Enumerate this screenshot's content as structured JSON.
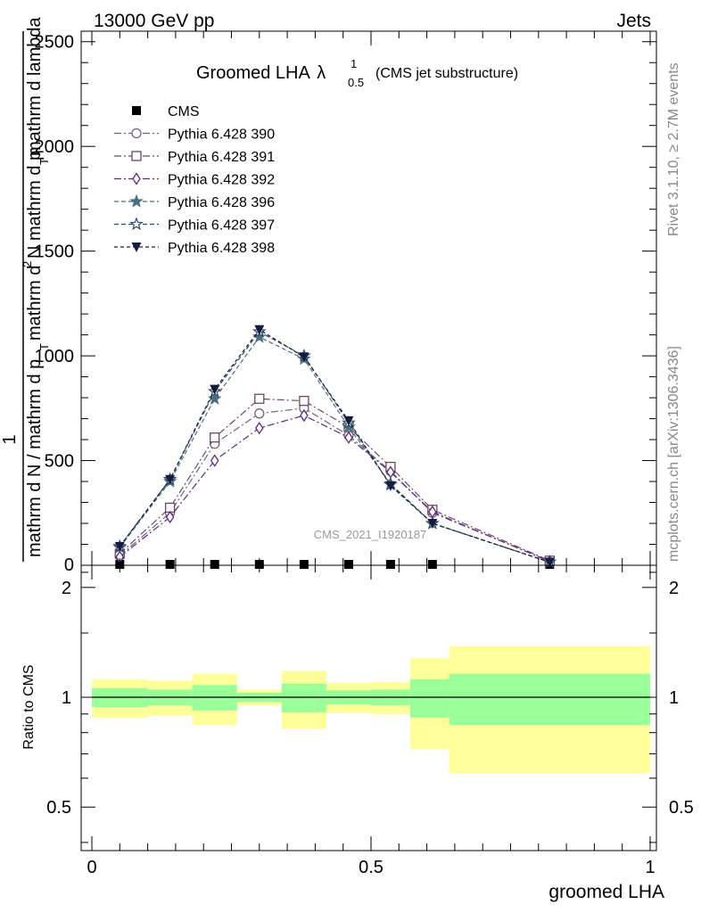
{
  "header": {
    "beam_label": "13000 GeV pp",
    "process_label": "Jets"
  },
  "side_labels": {
    "rivet": "Rivet 3.1.10, ≥ 2.7M events",
    "mcplots": "mcplots.cern.ch [arXiv:1306.3436]"
  },
  "chart_data": [
    {
      "type": "line",
      "title": "Groomed LHA",
      "title_symbol": "λ",
      "title_sup": "1",
      "title_sub": "0.5",
      "subtitle": "(CMS jet substructure)",
      "watermark": "CMS_2021_I1920187",
      "ylabel": "1 / (mathrm d N / mathrm d p_T) · mathrm d²N / (mathrm d p_T mathrm d lambda)",
      "ylabel_lines": [
        "1",
        "mathrm d N / mathrm d p",
        "T",
        "mathrm d",
        "2",
        "N",
        "mathrm d p",
        "T",
        "mathrm d lambda"
      ],
      "xlim": [
        0,
        1
      ],
      "ylim": [
        0,
        2550
      ],
      "yticks": [
        500,
        1000,
        1500,
        2000,
        2500
      ],
      "yticklabels": [
        "500",
        "1000",
        "1500",
        "2000",
        "2500"
      ],
      "x": [
        0.05,
        0.14,
        0.22,
        0.3,
        0.38,
        0.46,
        0.535,
        0.61,
        0.82
      ],
      "series": [
        {
          "name": "CMS",
          "marker": "filled-square",
          "color": "#000000",
          "values": [
            0,
            0,
            0,
            0,
            0,
            0,
            0,
            0,
            0
          ]
        },
        {
          "name": "Pythia 6.428 390",
          "marker": "open-circle",
          "color": "#77607f",
          "dash": "8,3,2,3",
          "values": [
            45,
            250,
            580,
            725,
            750,
            620,
            450,
            250,
            20
          ]
        },
        {
          "name": "Pythia 6.428 391",
          "marker": "open-square",
          "color": "#6e4860",
          "dash": "8,3,2,3",
          "values": [
            55,
            275,
            610,
            795,
            785,
            660,
            470,
            265,
            22
          ]
        },
        {
          "name": "Pythia 6.428 392",
          "marker": "open-diamond",
          "color": "#5a2a82",
          "dash": "8,3,2,3",
          "values": [
            40,
            230,
            500,
            655,
            715,
            610,
            445,
            255,
            18
          ]
        },
        {
          "name": "Pythia 6.428 396",
          "marker": "star",
          "color": "#4a6f80",
          "dash": "5,3",
          "values": [
            85,
            400,
            795,
            1090,
            985,
            660,
            390,
            200,
            15
          ]
        },
        {
          "name": "Pythia 6.428 397",
          "marker": "open-star",
          "color": "#2e4a6b",
          "dash": "5,3",
          "values": [
            90,
            410,
            830,
            1115,
            1000,
            680,
            385,
            200,
            15
          ]
        },
        {
          "name": "Pythia 6.428 398",
          "marker": "filled-triangle-down",
          "color": "#151c40",
          "dash": "4,3",
          "values": [
            90,
            410,
            840,
            1125,
            995,
            690,
            380,
            200,
            15
          ]
        }
      ]
    },
    {
      "type": "area",
      "ylabel": "Ratio to CMS",
      "xlabel": "groomed LHA",
      "xlim": [
        0,
        1
      ],
      "ylim": [
        0.38,
        2.3
      ],
      "yticks": [
        0.5,
        1,
        2
      ],
      "yticklabels": [
        "0.5",
        "1",
        "2"
      ],
      "xticks": [
        0,
        0.5,
        1
      ],
      "xticklabels": [
        "0",
        "0.5",
        "1"
      ],
      "reference_line": 1,
      "bands": [
        {
          "x0": 0.0,
          "x1": 0.1,
          "stat_lo": 0.94,
          "stat_hi": 1.06,
          "tot_lo": 0.88,
          "tot_hi": 1.12
        },
        {
          "x0": 0.1,
          "x1": 0.18,
          "stat_lo": 0.95,
          "stat_hi": 1.05,
          "tot_lo": 0.89,
          "tot_hi": 1.11
        },
        {
          "x0": 0.18,
          "x1": 0.26,
          "stat_lo": 0.92,
          "stat_hi": 1.08,
          "tot_lo": 0.84,
          "tot_hi": 1.16
        },
        {
          "x0": 0.26,
          "x1": 0.34,
          "stat_lo": 0.97,
          "stat_hi": 1.03,
          "tot_lo": 0.95,
          "tot_hi": 1.05
        },
        {
          "x0": 0.34,
          "x1": 0.42,
          "stat_lo": 0.91,
          "stat_hi": 1.09,
          "tot_lo": 0.82,
          "tot_hi": 1.18
        },
        {
          "x0": 0.42,
          "x1": 0.5,
          "stat_lo": 0.955,
          "stat_hi": 1.045,
          "tot_lo": 0.905,
          "tot_hi": 1.095
        },
        {
          "x0": 0.5,
          "x1": 0.57,
          "stat_lo": 0.95,
          "stat_hi": 1.05,
          "tot_lo": 0.9,
          "tot_hi": 1.1
        },
        {
          "x0": 0.57,
          "x1": 0.64,
          "stat_lo": 0.88,
          "stat_hi": 1.12,
          "tot_lo": 0.72,
          "tot_hi": 1.28
        },
        {
          "x0": 0.64,
          "x1": 1.0,
          "stat_lo": 0.84,
          "stat_hi": 1.16,
          "tot_lo": 0.62,
          "tot_hi": 1.38
        }
      ],
      "stat_color": "#99ff99",
      "total_color": "#ffff99"
    }
  ]
}
